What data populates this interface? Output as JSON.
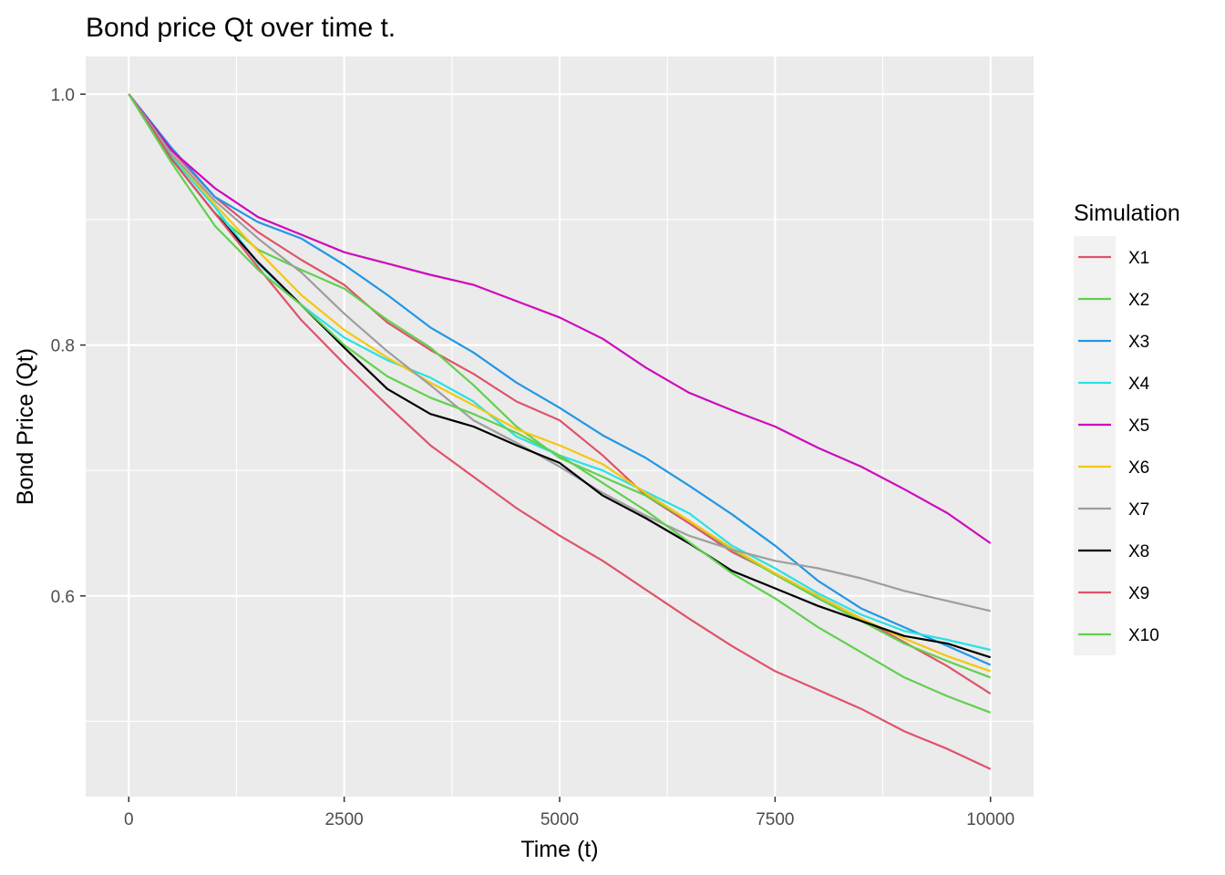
{
  "chart_data": {
    "type": "line",
    "title": "Bond price Qt over time t.",
    "xlabel": "Time (t)",
    "ylabel": "Bond Price (Qt)",
    "xlim": [
      -500,
      10500
    ],
    "ylim": [
      0.44,
      1.03
    ],
    "x_ticks": [
      0,
      2500,
      5000,
      7500,
      10000
    ],
    "x_tick_labels": [
      "0",
      "2500",
      "5000",
      "7500",
      "10000"
    ],
    "y_ticks": [
      0.6,
      0.8,
      1.0
    ],
    "y_tick_labels": [
      "0.6",
      "0.8",
      "1.0"
    ],
    "grid": true,
    "legend_position": "right",
    "legend_title": "Simulation",
    "x": [
      0,
      500,
      1000,
      1500,
      2000,
      2500,
      3000,
      3500,
      4000,
      4500,
      5000,
      5500,
      6000,
      6500,
      7000,
      7500,
      8000,
      8500,
      9000,
      9500,
      10000
    ],
    "series": [
      {
        "name": "X1",
        "color": "#DF536B",
        "values": [
          1.0,
          0.955,
          0.918,
          0.89,
          0.868,
          0.848,
          0.818,
          0.796,
          0.777,
          0.755,
          0.74,
          0.712,
          0.68,
          0.658,
          0.635,
          0.618,
          0.6,
          0.582,
          0.563,
          0.544,
          0.522
        ]
      },
      {
        "name": "X2",
        "color": "#61D04F",
        "values": [
          1.0,
          0.948,
          0.905,
          0.876,
          0.86,
          0.845,
          0.82,
          0.798,
          0.768,
          0.735,
          0.71,
          0.695,
          0.68,
          0.66,
          0.637,
          0.617,
          0.598,
          0.58,
          0.562,
          0.548,
          0.535
        ]
      },
      {
        "name": "X3",
        "color": "#2297E6",
        "values": [
          1.0,
          0.957,
          0.918,
          0.898,
          0.885,
          0.864,
          0.84,
          0.814,
          0.794,
          0.77,
          0.75,
          0.728,
          0.71,
          0.688,
          0.665,
          0.64,
          0.612,
          0.59,
          0.575,
          0.56,
          0.545
        ]
      },
      {
        "name": "X4",
        "color": "#28E2E5",
        "values": [
          1.0,
          0.95,
          0.91,
          0.865,
          0.832,
          0.806,
          0.788,
          0.774,
          0.755,
          0.727,
          0.712,
          0.7,
          0.683,
          0.666,
          0.64,
          0.622,
          0.602,
          0.585,
          0.572,
          0.565,
          0.557
        ]
      },
      {
        "name": "X5",
        "color": "#CD0BBC",
        "values": [
          1.0,
          0.955,
          0.925,
          0.902,
          0.888,
          0.874,
          0.865,
          0.856,
          0.848,
          0.835,
          0.822,
          0.805,
          0.782,
          0.762,
          0.748,
          0.735,
          0.718,
          0.703,
          0.685,
          0.666,
          0.642
        ]
      },
      {
        "name": "X6",
        "color": "#F5C710",
        "values": [
          1.0,
          0.952,
          0.912,
          0.875,
          0.84,
          0.812,
          0.79,
          0.77,
          0.752,
          0.733,
          0.72,
          0.705,
          0.682,
          0.66,
          0.638,
          0.618,
          0.6,
          0.582,
          0.566,
          0.552,
          0.54
        ]
      },
      {
        "name": "X7",
        "color": "#9E9E9E",
        "values": [
          1.0,
          0.952,
          0.915,
          0.885,
          0.858,
          0.825,
          0.795,
          0.768,
          0.74,
          0.722,
          0.703,
          0.682,
          0.664,
          0.648,
          0.637,
          0.628,
          0.622,
          0.614,
          0.604,
          0.596,
          0.588
        ]
      },
      {
        "name": "X8",
        "color": "#000000",
        "values": [
          1.0,
          0.948,
          0.905,
          0.866,
          0.832,
          0.798,
          0.765,
          0.745,
          0.735,
          0.72,
          0.706,
          0.68,
          0.662,
          0.642,
          0.62,
          0.606,
          0.592,
          0.58,
          0.568,
          0.562,
          0.551
        ]
      },
      {
        "name": "X9",
        "color": "#DF536B",
        "values": [
          1.0,
          0.948,
          0.905,
          0.862,
          0.82,
          0.785,
          0.752,
          0.72,
          0.695,
          0.67,
          0.648,
          0.628,
          0.605,
          0.582,
          0.56,
          0.54,
          0.525,
          0.51,
          0.492,
          0.478,
          0.462
        ]
      },
      {
        "name": "X10",
        "color": "#61D04F",
        "values": [
          1.0,
          0.945,
          0.895,
          0.86,
          0.832,
          0.8,
          0.775,
          0.758,
          0.745,
          0.73,
          0.712,
          0.69,
          0.668,
          0.643,
          0.618,
          0.598,
          0.575,
          0.555,
          0.535,
          0.52,
          0.507
        ]
      }
    ]
  }
}
